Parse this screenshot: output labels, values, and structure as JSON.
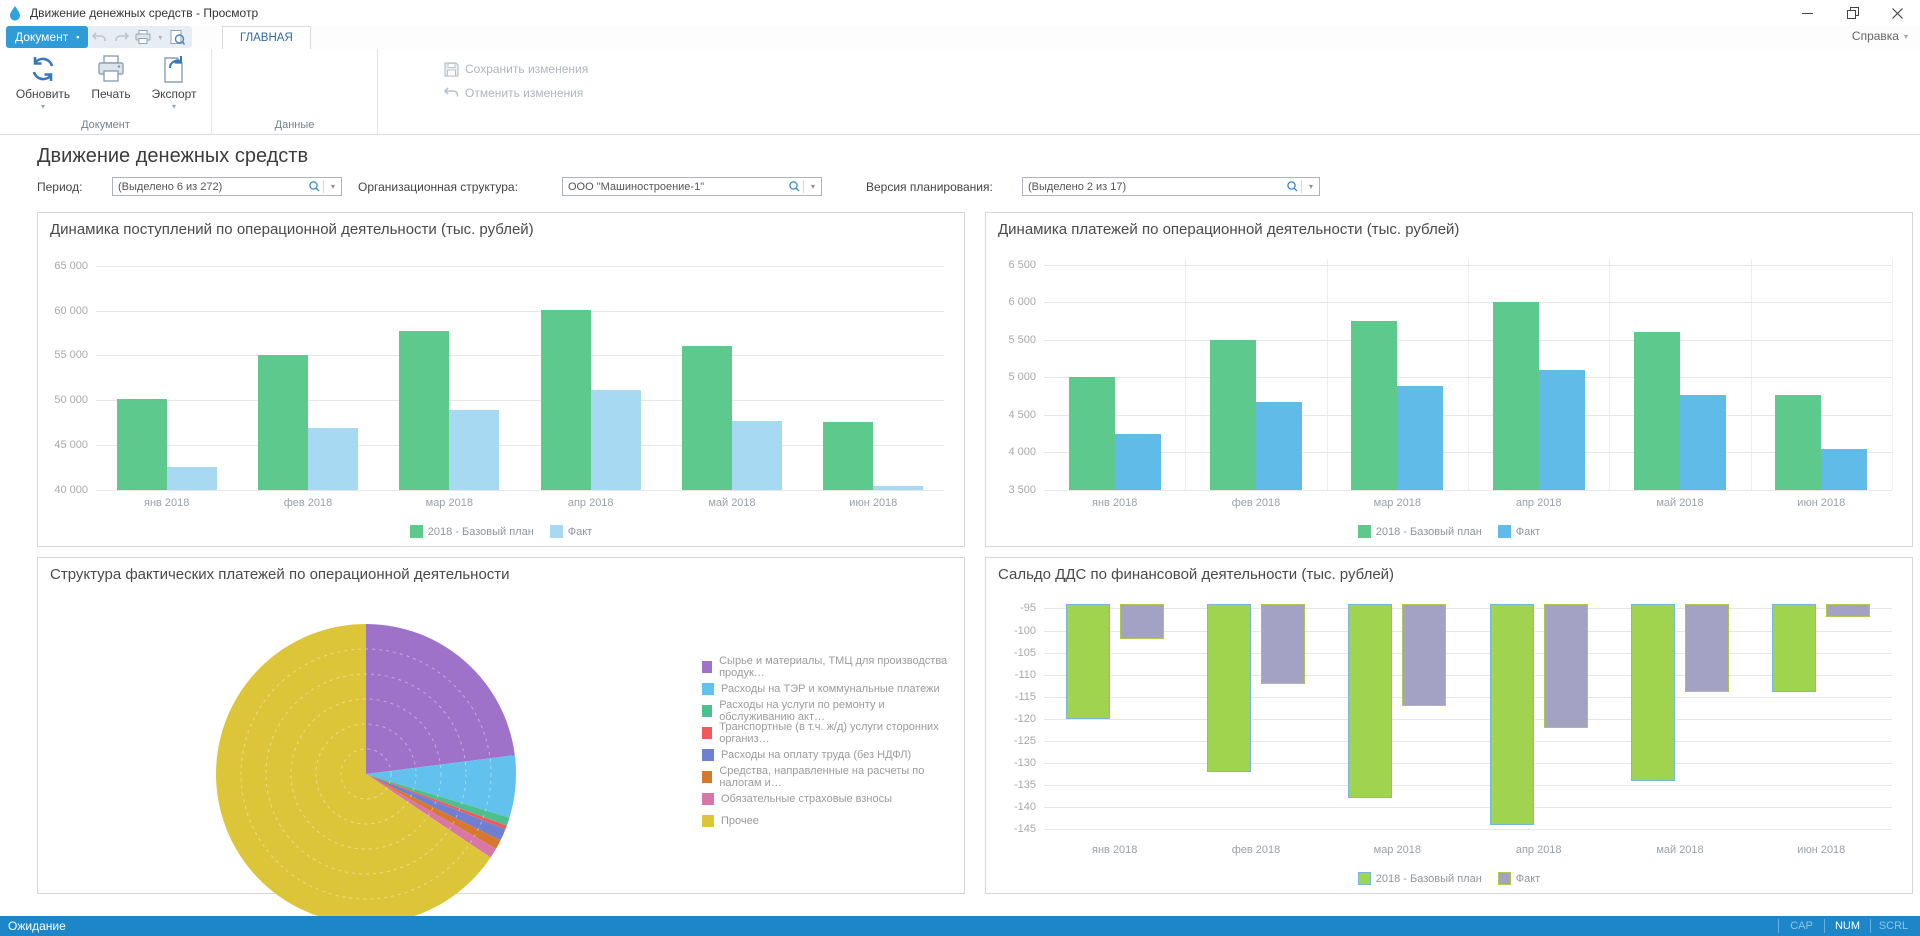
{
  "window": {
    "title": "Движение денежных средств - Просмотр",
    "help_label": "Справка"
  },
  "icons": {
    "dropdown_arrow": "▾",
    "menu_indicator": "▪"
  },
  "ribbon": {
    "document_button": "Документ",
    "tab": "ГЛАВНАЯ",
    "buttons": {
      "refresh": "Обновить",
      "print": "Печать",
      "export": "Экспорт",
      "save": "Сохранить изменения",
      "undo": "Отменить изменения"
    },
    "groups": {
      "document": "Документ",
      "data": "Данные"
    }
  },
  "page": {
    "title": "Движение денежных средств",
    "filters": [
      {
        "label": "Период:",
        "value": "(Выделено 6 из 272)"
      },
      {
        "label": "Организационная структура:",
        "value": "ООО \"Машиностроение-1\""
      },
      {
        "label": "Версия планирования:",
        "value": "(Выделено 2 из 17)"
      }
    ]
  },
  "status_bar": {
    "text": "Ожидание",
    "indicators": [
      "CAP",
      "NUM",
      "SCRL"
    ],
    "active_indicator": "NUM"
  },
  "chart_data": [
    {
      "type": "bar",
      "title": "Динамика поступлений по операционной деятельности (тыс. рублей)",
      "categories": [
        "янв 2018",
        "фев 2018",
        "мар 2018",
        "апр 2018",
        "май 2018",
        "июн 2018"
      ],
      "series": [
        {
          "name": "2018 - Базовый план",
          "color": "#5ec98c",
          "values": [
            50100,
            55000,
            57700,
            60100,
            56100,
            47600
          ]
        },
        {
          "name": "Факт",
          "color": "#a7d9f3",
          "values": [
            42600,
            46900,
            48900,
            51100,
            47700,
            40400
          ]
        }
      ],
      "ylim": [
        40000,
        65000
      ],
      "ytick_step": 5000,
      "grid": true,
      "legend_position": "bottom"
    },
    {
      "type": "bar",
      "title": "Динамика платежей по операционной деятельности (тыс. рублей)",
      "categories": [
        "янв 2018",
        "фев 2018",
        "мар 2018",
        "апр 2018",
        "май 2018",
        "июн 2018"
      ],
      "series": [
        {
          "name": "2018 - Базовый план",
          "color": "#5ec98c",
          "values": [
            5000,
            5500,
            5750,
            6000,
            5600,
            4760
          ]
        },
        {
          "name": "Факт",
          "color": "#60bbe8",
          "values": [
            4250,
            4670,
            4880,
            5100,
            4760,
            4040
          ]
        }
      ],
      "ylim": [
        3500,
        6500
      ],
      "ytick_step": 500,
      "grid": true,
      "legend_position": "bottom"
    },
    {
      "type": "pie",
      "title": "Структура фактических платежей по операционной деятельности",
      "slices": [
        {
          "label": "Сырье и материалы, ТМЦ для производства продук…",
          "color": "#9f72c9",
          "percent": 23.0
        },
        {
          "label": "Расходы на ТЭР и коммунальные платежи",
          "color": "#63c2ed",
          "percent": 6.7
        },
        {
          "label": "Расходы на услуги по ремонту и обслуживанию акт…",
          "color": "#4ec08f",
          "percent": 0.9
        },
        {
          "label": "Транспортные (в т.ч. ж/д) услуги сторонних организ…",
          "color": "#f05a5a",
          "percent": 0.4
        },
        {
          "label": "Расходы на оплату труда (без НДФЛ)",
          "color": "#7080d0",
          "percent": 1.3
        },
        {
          "label": "Средства, направленные на расчеты по налогам и…",
          "color": "#d8772e",
          "percent": 1.0
        },
        {
          "label": "Обязательные страховые взносы",
          "color": "#d876a8",
          "percent": 1.1
        },
        {
          "label": "Прочее",
          "color": "#ddc53a",
          "percent": 65.6
        }
      ],
      "legend_position": "right"
    },
    {
      "type": "bar",
      "title": "Сальдо ДДС по финансовой деятельности (тыс. рублей)",
      "categories": [
        "янв 2018",
        "фев 2018",
        "мар 2018",
        "апр 2018",
        "май 2018",
        "июн 2018"
      ],
      "series": [
        {
          "name": "2018 - Базовый план",
          "color": "#a0d44f",
          "border": "#74b8dd",
          "values": [
            -120,
            -132,
            -138,
            -144,
            -134,
            -114
          ]
        },
        {
          "name": "Факт",
          "color": "#a3a2c4",
          "border": "#b0c74e",
          "values": [
            -102,
            -112,
            -117,
            -122,
            -114,
            -97
          ]
        }
      ],
      "ylim": [
        -145,
        -95
      ],
      "ytick_step": 5,
      "bars_from_top": true,
      "grid": true,
      "legend_position": "bottom"
    }
  ]
}
